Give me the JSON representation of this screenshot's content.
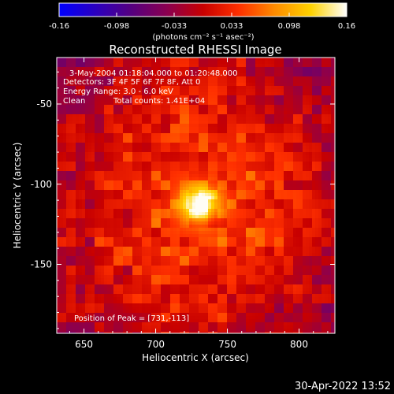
{
  "chart_data": {
    "type": "heatmap",
    "title": "Reconstructed RHESSI Image",
    "xlabel": "Heliocentric X (arcsec)",
    "ylabel": "Heliocentric Y (arcsec)",
    "xlim": [
      631,
      825
    ],
    "ylim": [
      -193,
      -21
    ],
    "xticks": [
      "650",
      "700",
      "750",
      "800"
    ],
    "xtick_values": [
      650,
      700,
      750,
      800
    ],
    "yticks": [
      "-50",
      "-100",
      "-150"
    ],
    "ytick_values": [
      -50,
      -100,
      -150
    ],
    "colorbar": {
      "tick_labels": [
        "-0.16",
        "-0.098",
        "-0.033",
        "0.033",
        "0.098",
        "0.16"
      ],
      "min": -0.16,
      "max": 0.16,
      "units_label": "(photons cm⁻² s⁻¹ asec⁻²)",
      "colors": [
        "#0000ff",
        "#2a00c0",
        "#550080",
        "#8a0050",
        "#c80000",
        "#ff3000",
        "#ff8c00",
        "#ffd200",
        "#ffffff"
      ]
    },
    "annotations": {
      "time_range": "3-May-2004 01:18:04.000 to 01:20:48.000",
      "detectors": "Detectors: 3F 4F 5F 6F 7F 8F, Att 0",
      "energy_range": "Energy Range: 3.0 - 6.0 keV",
      "algorithm": "Clean",
      "total_counts": "Total counts: 1.41E+04",
      "peak_position": "Position of Peak = [731,-113]"
    },
    "peak": {
      "x": 731,
      "y": -113
    },
    "grid": false
  },
  "footer": {
    "timestamp": "30-Apr-2022 13:52"
  }
}
